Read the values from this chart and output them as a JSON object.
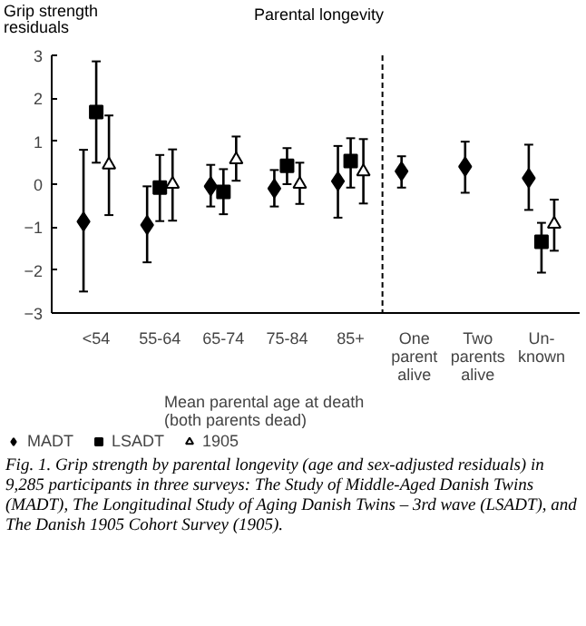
{
  "chart_data": {
    "type": "scatter",
    "title": "Parental longevity",
    "ylabel": "Grip strength residuals",
    "categories": [
      "<54",
      "55-64",
      "65-74",
      "75-84",
      "85+",
      "One\nparent\nalive",
      "Two\nparents\nalive",
      "Un-\nknown"
    ],
    "series": [
      {
        "name": "MADT",
        "color": "#000000",
        "marker": "diamond",
        "values": [
          -0.87,
          -0.95,
          -0.05,
          -0.1,
          0.07,
          0.3,
          0.41,
          0.14
        ],
        "errors": [
          [
            -2.5,
            0.8
          ],
          [
            -1.82,
            -0.05
          ],
          [
            -0.52,
            0.45
          ],
          [
            -0.52,
            0.33
          ],
          [
            -0.78,
            0.89
          ],
          [
            -0.08,
            0.65
          ],
          [
            -0.2,
            0.99
          ],
          [
            -0.6,
            0.92
          ]
        ]
      },
      {
        "name": "LSADT",
        "color": "#000000",
        "marker": "square",
        "values": [
          1.68,
          -0.08,
          -0.18,
          0.43,
          0.54,
          null,
          null,
          -1.34
        ],
        "errors": [
          [
            0.5,
            2.86
          ],
          [
            -0.86,
            0.68
          ],
          [
            -0.7,
            0.35
          ],
          [
            0.0,
            0.84
          ],
          [
            -0.08,
            1.07
          ],
          null,
          null,
          [
            -2.06,
            -0.9
          ]
        ]
      },
      {
        "name": "1905",
        "color": "#000000",
        "marker": "triangle",
        "values": [
          0.45,
          0.0,
          0.57,
          0.0,
          0.29,
          null,
          null,
          -0.93
        ],
        "errors": [
          [
            -0.72,
            1.6
          ],
          [
            -0.85,
            0.81
          ],
          [
            0.08,
            1.11
          ],
          [
            -0.46,
            0.5
          ],
          [
            -0.45,
            1.05
          ],
          null,
          null,
          [
            -1.55,
            -0.36
          ]
        ]
      }
    ],
    "ylim": [
      -3,
      3
    ],
    "yticks": [
      -3,
      -2,
      -1,
      0,
      1,
      2,
      3
    ],
    "annotations": [
      "Mean parental age at death\n(both parents dead)",
      "Fig. 1. Grip strength by parental longevity (age and sex-adjusted residuals) in 9,285 participants in three surveys: The Study of Middle-Aged Danish Twins (MADT), The Longitudinal Study of Aging Danish Twins – 3rd wave (LSADT), and The Danish 1905 Cohort Survey (1905)."
    ],
    "legend": "bottom",
    "grid": false
  }
}
